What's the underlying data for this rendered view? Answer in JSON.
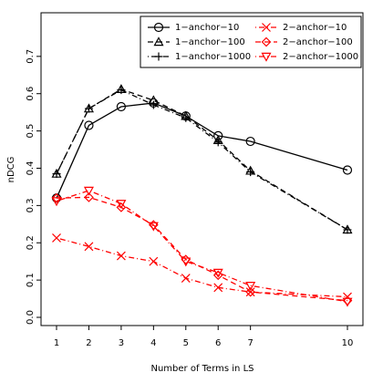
{
  "chart_data": {
    "type": "line",
    "xlabel": "Number of Terms in LS",
    "ylabel": "nDCG",
    "x": [
      1,
      2,
      3,
      4,
      5,
      6,
      7,
      10
    ],
    "series": [
      {
        "name": "1−anchor−10",
        "color": "#000000",
        "marker": "circle",
        "dash": "solid",
        "values": [
          0.32,
          0.515,
          0.565,
          0.575,
          0.54,
          0.487,
          0.472,
          0.395
        ]
      },
      {
        "name": "1−anchor−100",
        "color": "#000000",
        "marker": "triangle",
        "dash": "dashed",
        "values": [
          0.385,
          0.56,
          0.612,
          0.582,
          0.54,
          0.475,
          0.393,
          0.235
        ]
      },
      {
        "name": "1−anchor−1000",
        "color": "#000000",
        "marker": "plus",
        "dash": "dotdash",
        "values": [
          0.385,
          0.56,
          0.61,
          0.57,
          0.535,
          0.47,
          0.39,
          0.235
        ]
      },
      {
        "name": "2−anchor−10",
        "color": "#ff0000",
        "marker": "cross",
        "dash": "dotdash",
        "values": [
          0.213,
          0.19,
          0.165,
          0.15,
          0.105,
          0.08,
          0.068,
          0.055
        ]
      },
      {
        "name": "2−anchor−100",
        "color": "#ff0000",
        "marker": "diamond",
        "dash": "dashed",
        "values": [
          0.32,
          0.322,
          0.295,
          0.248,
          0.155,
          0.113,
          0.068,
          0.045
        ]
      },
      {
        "name": "2−anchor−1000",
        "color": "#ff0000",
        "marker": "invtriangle",
        "dash": "dotdash",
        "values": [
          0.312,
          0.34,
          0.305,
          0.245,
          0.15,
          0.12,
          0.085,
          0.042
        ]
      }
    ],
    "xlim": [
      0.52,
      10.48
    ],
    "xticks": [
      1,
      2,
      3,
      4,
      5,
      6,
      7,
      10
    ],
    "ylim": [
      -0.022,
      0.817
    ],
    "yticks": [
      {
        "value": 0,
        "label": "0.0"
      },
      0.1,
      0.2,
      0.3,
      0.4,
      0.5,
      0.6,
      0.7
    ],
    "legend": "top-right"
  }
}
